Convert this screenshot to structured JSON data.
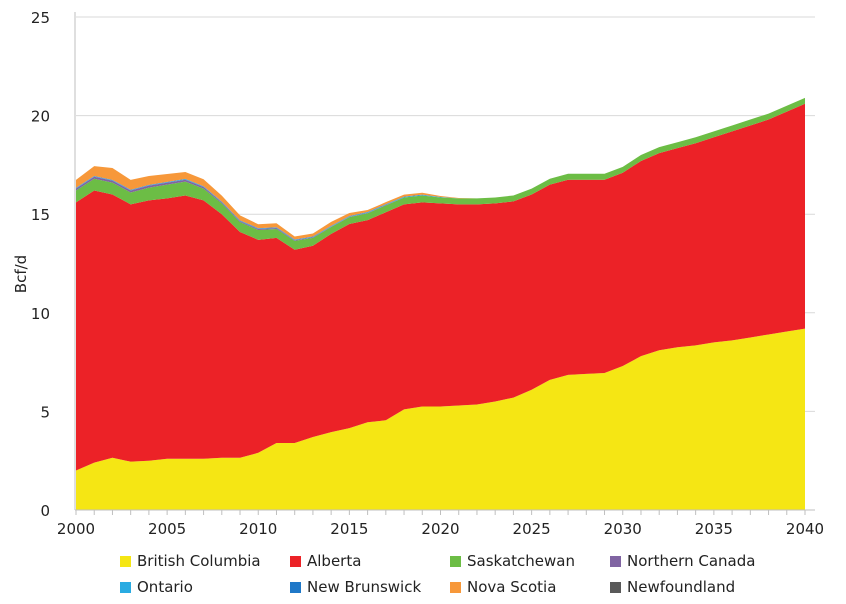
{
  "chart_data": {
    "type": "area",
    "stacked": true,
    "xlabel": "",
    "ylabel": "Bcf/d",
    "xlim": [
      2000,
      2040
    ],
    "ylim": [
      0,
      25
    ],
    "x_ticks": [
      2000,
      2005,
      2010,
      2015,
      2020,
      2025,
      2030,
      2035,
      2040
    ],
    "y_ticks": [
      0,
      5,
      10,
      15,
      20,
      25
    ],
    "grid": "horizontal",
    "legend_position": "bottom",
    "x": [
      2000,
      2001,
      2002,
      2003,
      2004,
      2005,
      2006,
      2007,
      2008,
      2009,
      2010,
      2011,
      2012,
      2013,
      2014,
      2015,
      2016,
      2017,
      2018,
      2019,
      2020,
      2021,
      2022,
      2023,
      2024,
      2025,
      2026,
      2027,
      2028,
      2029,
      2030,
      2031,
      2032,
      2033,
      2034,
      2035,
      2036,
      2037,
      2038,
      2039,
      2040
    ],
    "series": [
      {
        "name": "British Columbia",
        "color": "#f5e614",
        "values": [
          2.0,
          2.4,
          2.65,
          2.45,
          2.5,
          2.6,
          2.6,
          2.6,
          2.65,
          2.65,
          2.9,
          3.4,
          3.4,
          3.7,
          3.95,
          4.15,
          4.45,
          4.55,
          5.1,
          5.25,
          5.25,
          5.3,
          5.35,
          5.5,
          5.7,
          6.1,
          6.6,
          6.85,
          6.9,
          6.95,
          7.3,
          7.8,
          8.1,
          8.25,
          8.35,
          8.5,
          8.6,
          8.75,
          8.9,
          9.05,
          9.2
        ]
      },
      {
        "name": "Alberta",
        "color": "#ec2227",
        "values": [
          13.6,
          13.8,
          13.35,
          13.05,
          13.2,
          13.2,
          13.35,
          13.1,
          12.35,
          11.45,
          10.8,
          10.4,
          9.8,
          9.7,
          10.05,
          10.35,
          10.25,
          10.55,
          10.4,
          10.35,
          10.3,
          10.2,
          10.15,
          10.05,
          9.95,
          9.9,
          9.9,
          9.9,
          9.85,
          9.8,
          9.8,
          9.9,
          10.0,
          10.1,
          10.25,
          10.4,
          10.6,
          10.75,
          10.9,
          11.15,
          11.4
        ]
      },
      {
        "name": "Saskatchewan",
        "color": "#6cbd45",
        "values": [
          0.6,
          0.6,
          0.6,
          0.6,
          0.65,
          0.7,
          0.7,
          0.6,
          0.55,
          0.5,
          0.5,
          0.45,
          0.45,
          0.4,
          0.35,
          0.35,
          0.35,
          0.35,
          0.35,
          0.35,
          0.3,
          0.3,
          0.3,
          0.3,
          0.3,
          0.3,
          0.3,
          0.3,
          0.3,
          0.3,
          0.3,
          0.3,
          0.3,
          0.3,
          0.3,
          0.3,
          0.3,
          0.3,
          0.3,
          0.3,
          0.3
        ]
      },
      {
        "name": "Northern Canada",
        "color": "#8064a2",
        "values": [
          0.1,
          0.1,
          0.1,
          0.1,
          0.1,
          0.1,
          0.1,
          0.08,
          0.05,
          0.05,
          0.05,
          0.05,
          0.03,
          0.03,
          0.02,
          0.02,
          0.02,
          0.02,
          0,
          0,
          0,
          0,
          0,
          0,
          0,
          0,
          0,
          0,
          0,
          0,
          0,
          0,
          0,
          0,
          0,
          0,
          0,
          0,
          0,
          0,
          0
        ]
      },
      {
        "name": "Ontario",
        "color": "#29abe2",
        "values": [
          0.02,
          0.02,
          0.02,
          0.02,
          0.02,
          0.02,
          0.02,
          0.02,
          0.02,
          0.02,
          0.02,
          0.02,
          0.02,
          0.02,
          0.02,
          0.02,
          0.02,
          0.02,
          0.02,
          0.02,
          0.02,
          0,
          0,
          0,
          0,
          0,
          0,
          0,
          0,
          0,
          0,
          0,
          0,
          0,
          0,
          0,
          0,
          0,
          0,
          0,
          0
        ]
      },
      {
        "name": "New Brunswick",
        "color": "#1f78c8",
        "values": [
          0.02,
          0.02,
          0.02,
          0.02,
          0.02,
          0.02,
          0.02,
          0.02,
          0.02,
          0.02,
          0.02,
          0.02,
          0.02,
          0.02,
          0.02,
          0.02,
          0.02,
          0.02,
          0.02,
          0.02,
          0,
          0,
          0,
          0,
          0,
          0,
          0,
          0,
          0,
          0,
          0,
          0,
          0,
          0,
          0,
          0,
          0,
          0,
          0,
          0,
          0
        ]
      },
      {
        "name": "Nova Scotia",
        "color": "#f7983a",
        "values": [
          0.4,
          0.5,
          0.6,
          0.5,
          0.45,
          0.4,
          0.35,
          0.35,
          0.3,
          0.25,
          0.2,
          0.2,
          0.15,
          0.15,
          0.2,
          0.15,
          0.1,
          0.1,
          0.1,
          0.1,
          0.05,
          0.02,
          0,
          0,
          0,
          0,
          0,
          0,
          0,
          0,
          0,
          0,
          0,
          0,
          0,
          0,
          0,
          0,
          0,
          0,
          0
        ]
      },
      {
        "name": "Newfoundland",
        "color": "#595959",
        "values": [
          0,
          0,
          0,
          0,
          0,
          0,
          0,
          0,
          0,
          0,
          0,
          0,
          0,
          0,
          0,
          0,
          0,
          0,
          0,
          0,
          0,
          0,
          0,
          0,
          0,
          0,
          0,
          0,
          0,
          0,
          0,
          0,
          0,
          0,
          0,
          0,
          0,
          0,
          0,
          0,
          0
        ]
      }
    ]
  }
}
